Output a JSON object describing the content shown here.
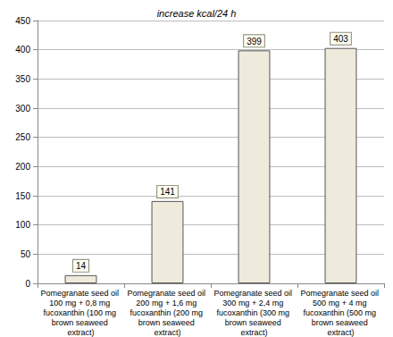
{
  "chart_data": {
    "type": "bar",
    "title": "increase kcal/24 h",
    "categories": [
      "Pomegranate seed oil 100 mg + 0,8 mg fucoxanthin (100 mg brown seaweed extract)",
      "Pomegranate seed oil 200 mg + 1,6 mg fucoxanthin (200 mg brown seaweed extract)",
      "Pomegranate seed oil 300 mg + 2,4 mg fucoxanthin (300 mg brown seaweed extract)",
      "Pomegranate seed oil 500 mg + 4 mg fucoxanthin (500 mg brown seaweed extract)"
    ],
    "values": [
      14,
      141,
      399,
      403
    ],
    "color": "#eeebdd",
    "ylim": [
      0,
      450
    ],
    "yticks": [
      0,
      50,
      100,
      150,
      200,
      250,
      300,
      350,
      400,
      450
    ],
    "grid": true,
    "data_labels": true
  }
}
